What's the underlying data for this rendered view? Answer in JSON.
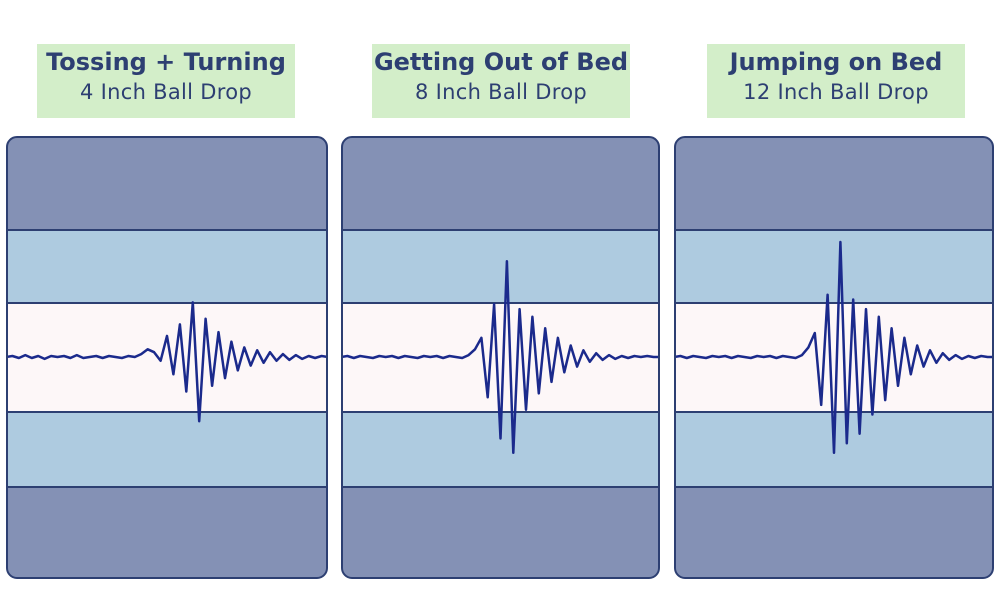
{
  "colors": {
    "dark_band": "#8491b5",
    "light_band": "#aecbe0",
    "center_band": "#fdf7f8",
    "border": "#2d3f72",
    "signal": "#1b2a8c",
    "label_bg": "#d3eec9"
  },
  "chart_data": [
    {
      "type": "line",
      "title": "Tossing + Turning",
      "subtitle": "4 Inch Ball Drop",
      "ylim": [
        -1.2,
        1.2
      ],
      "series": [
        {
          "values": [
            0,
            0.01,
            -0.01,
            0.02,
            -0.01,
            0.01,
            -0.02,
            0.01,
            0,
            0.01,
            -0.01,
            0.02,
            -0.01,
            0,
            0.01,
            -0.01,
            0.01,
            0,
            -0.01,
            0.01,
            0,
            0.03,
            0.08,
            0.05,
            -0.04,
            0.22,
            -0.18,
            0.34,
            -0.36,
            0.57,
            -0.67,
            0.4,
            -0.3,
            0.26,
            -0.22,
            0.16,
            -0.14,
            0.1,
            -0.09,
            0.07,
            -0.06,
            0.05,
            -0.04,
            0.03,
            -0.03,
            0.02,
            -0.02,
            0.01,
            -0.01,
            0.01,
            0
          ]
        }
      ]
    },
    {
      "type": "line",
      "title": "Getting Out of Bed",
      "subtitle": "8 Inch Ball Drop",
      "ylim": [
        -1.2,
        1.2
      ],
      "series": [
        {
          "values": [
            0,
            0.01,
            -0.01,
            0.01,
            0,
            -0.01,
            0.01,
            0,
            0.01,
            -0.01,
            0.01,
            0,
            -0.01,
            0.01,
            0,
            0.01,
            -0.01,
            0.01,
            0,
            -0.01,
            0.02,
            0.08,
            0.2,
            -0.42,
            0.55,
            -0.85,
            1.0,
            -1.0,
            0.5,
            -0.55,
            0.42,
            -0.38,
            0.3,
            -0.26,
            0.2,
            -0.16,
            0.12,
            -0.1,
            0.07,
            -0.05,
            0.04,
            -0.03,
            0.02,
            -0.02,
            0.01,
            -0.01,
            0.01,
            0,
            0.01,
            0,
            0
          ]
        }
      ]
    },
    {
      "type": "line",
      "title": "Jumping on Bed",
      "subtitle": "12 Inch Ball Drop",
      "ylim": [
        -1.2,
        1.2
      ],
      "series": [
        {
          "values": [
            0,
            0.01,
            -0.01,
            0.01,
            0,
            -0.01,
            0.01,
            0,
            0.01,
            -0.01,
            0.01,
            0,
            -0.01,
            0.01,
            0,
            0.01,
            -0.01,
            0.01,
            0,
            -0.01,
            0.02,
            0.1,
            0.25,
            -0.5,
            0.65,
            -1.0,
            1.2,
            -0.9,
            0.6,
            -0.8,
            0.5,
            -0.6,
            0.42,
            -0.45,
            0.3,
            -0.3,
            0.2,
            -0.18,
            0.12,
            -0.1,
            0.07,
            -0.06,
            0.04,
            -0.03,
            0.02,
            -0.02,
            0.01,
            -0.01,
            0.01,
            0,
            0
          ]
        }
      ]
    }
  ]
}
